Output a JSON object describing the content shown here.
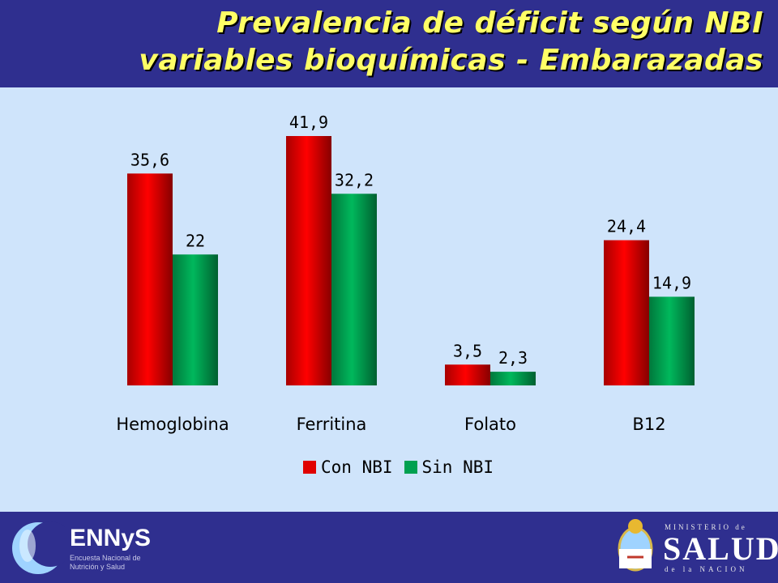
{
  "header": {
    "title_line1": "Prevalencia de déficit según NBI",
    "title_line2": "variables bioquímicas - Embarazadas"
  },
  "colors": {
    "con_nbi": "#e00000",
    "sin_nbi": "#00a050",
    "background": "#cfe4fb",
    "band": "#2f2f8f",
    "title": "#ffff66"
  },
  "chart_data": {
    "type": "bar",
    "categories": [
      "Hemoglobina",
      "Ferritina",
      "Folato",
      "B12"
    ],
    "series": [
      {
        "name": "Con NBI",
        "values": [
          35.6,
          41.9,
          3.5,
          24.4
        ],
        "labels": [
          "35,6",
          "41,9",
          "3,5",
          "24,4"
        ]
      },
      {
        "name": "Sin NBI",
        "values": [
          22,
          32.2,
          2.3,
          14.9
        ],
        "labels": [
          "22",
          "32,2",
          "2,3",
          "14,9"
        ]
      }
    ],
    "ylim": [
      0,
      41.9
    ],
    "grid": false,
    "legend": "bottom-center"
  },
  "footer": {
    "logo_left": {
      "name": "ENNyS",
      "subtitle": "Encuesta Nacional de Nutrición y Salud"
    },
    "logo_right": {
      "top": "MINISTERIO de",
      "main": "SALUD",
      "bottom": "de la NACION"
    }
  }
}
